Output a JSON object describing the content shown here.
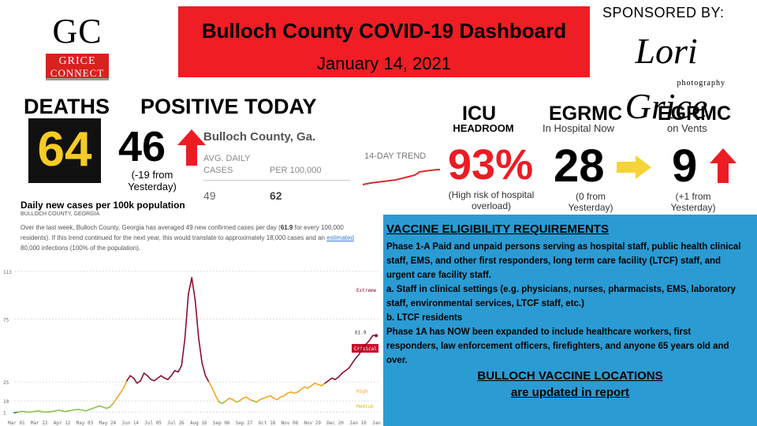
{
  "logo": {
    "letters": "GC",
    "line1": "GRICE",
    "line2": "CONNECT"
  },
  "header": {
    "title": "Bulloch County COVID-19 Dashboard",
    "date": "January 14, 2021"
  },
  "sponsor": {
    "label": "SPONSORED BY:",
    "name": "Lori Grice",
    "tagline": "photography"
  },
  "deaths": {
    "label": "DEATHS",
    "value": "64"
  },
  "positive": {
    "label": "POSITIVE TODAY",
    "value": "46",
    "note": "(-19 from Yesterday)"
  },
  "stats": {
    "title": "Bulloch County, Ga.",
    "col1_header": "AVG. DAILY CASES",
    "col2_header": "PER 100,000",
    "col1_value": "49",
    "col2_value": "62"
  },
  "trend": {
    "label": "14-DAY TREND"
  },
  "icu": {
    "label": "ICU",
    "sublabel": "HEADROOM",
    "value": "93%",
    "note": "(High risk of hospital overload)"
  },
  "hospital": {
    "label": "EGRMC",
    "sublabel": "In Hospital Now",
    "value": "28",
    "note": "(0 from Yesterday)"
  },
  "vents": {
    "label": "EGRMC",
    "sublabel": "on Vents",
    "value": "9",
    "note": "(+1 from Yesterday)"
  },
  "chart": {
    "title": "Daily new cases per 100k population",
    "subtitle": "BULLOCH COUNTY, GEORGIA",
    "desc_part1": "Over the last week, Bulloch County, Georgia has averaged 49 new confirmed cases per day (",
    "desc_bold": "61.9",
    "desc_part2": " for every 100,000 residents). If this trend continued for the next year, this would translate to approximately 18,000 cases and an ",
    "desc_link": "estimated",
    "desc_part3": " 80,000 infections (100% of the population)."
  },
  "chart_data": {
    "type": "line",
    "title": "Daily new cases per 100k population",
    "subtitle": "BULLOCH COUNTY, GEORGIA",
    "yticks": [
      1,
      10,
      25,
      75,
      113
    ],
    "xticks": [
      "Mar 01",
      "Mar 22",
      "Apr 12",
      "May 03",
      "May 24",
      "Jun 14",
      "Jul 05",
      "Jul 26",
      "Aug 16",
      "Sep 06",
      "Sep 27",
      "Oct 18",
      "Nov 08",
      "Nov 29",
      "Dec 20",
      "Jan 10",
      "Jan 31"
    ],
    "zone_labels": [
      "Extreme",
      "Critical",
      "High",
      "Medium"
    ],
    "annotation": "61.9",
    "x_index": [
      0,
      3,
      6,
      9,
      12,
      15,
      18,
      21,
      24,
      27,
      30,
      33,
      36,
      39,
      42,
      45,
      48,
      51,
      54,
      57,
      60,
      63,
      66,
      69,
      72,
      75,
      78,
      81,
      84,
      87,
      90,
      93,
      96,
      99,
      102,
      105,
      108,
      111,
      114,
      117,
      120,
      123,
      126,
      129,
      132,
      135,
      138,
      141,
      144,
      147,
      150,
      153,
      156,
      159,
      162,
      165,
      168,
      171,
      174,
      177,
      180,
      183,
      186,
      189,
      192,
      195,
      198,
      201,
      204,
      207,
      210,
      213,
      216,
      219,
      222,
      225,
      228,
      231,
      234,
      237,
      240,
      243,
      246,
      249,
      252,
      255,
      258,
      261,
      264,
      267,
      270,
      273,
      276,
      279,
      282,
      285,
      288,
      291,
      294,
      297,
      300,
      303,
      306,
      309,
      312,
      315,
      318
    ],
    "values": [
      0.5,
      1,
      1.5,
      1.5,
      1,
      1.2,
      1.5,
      2,
      1.5,
      1,
      1.2,
      1.5,
      2,
      2.5,
      2,
      1.5,
      2,
      2.5,
      3,
      3,
      2.5,
      2,
      3,
      4,
      5,
      6,
      5,
      4,
      5,
      8,
      12,
      16,
      20,
      26,
      30,
      28,
      24,
      26,
      32,
      30,
      27,
      26,
      28,
      30,
      28,
      27,
      30,
      34,
      33,
      38,
      60,
      95,
      108,
      90,
      60,
      40,
      30,
      25,
      20,
      14,
      9,
      8,
      10,
      12,
      11,
      9,
      10,
      12,
      13,
      11,
      10,
      9,
      11,
      12,
      13,
      14,
      12,
      11,
      13,
      14,
      16,
      17,
      16,
      17,
      19,
      21,
      20,
      22,
      24,
      23,
      22,
      24,
      26,
      28,
      27,
      29,
      32,
      34,
      36,
      40,
      44,
      47,
      52,
      55,
      58,
      62,
      61.9
    ]
  },
  "vaccine": {
    "title": "VACCINE ELIGIBILITY REQUIREMENTS",
    "p1": "Phase 1-A Paid and unpaid persons serving as hospital staff, public health clinical staff, EMS, and other first responders, long term care facility (LTCF) staff, and urgent care facility staff.",
    "p2": "a. Staff in clinical settings (e.g. physicians, nurses, pharmacists, EMS, laboratory staff, environmental services, LTCF staff, etc.)",
    "p3": "b. LTCF residents",
    "p4": "Phase 1A has NOW been expanded to include healthcare workers, first responders, law enforcement officers, firefighters, and anyone 65 years old and over.",
    "loc_line1": "BULLOCH VACCINE LOCATIONS",
    "loc_line2": "are updated in report"
  },
  "colors": {
    "red": "#ef1d24",
    "blue": "#2b9bd3",
    "yellow": "#f6cb24",
    "dark_red": "#8b0f2a",
    "orange": "#f5a623",
    "green": "#2e7d32"
  }
}
